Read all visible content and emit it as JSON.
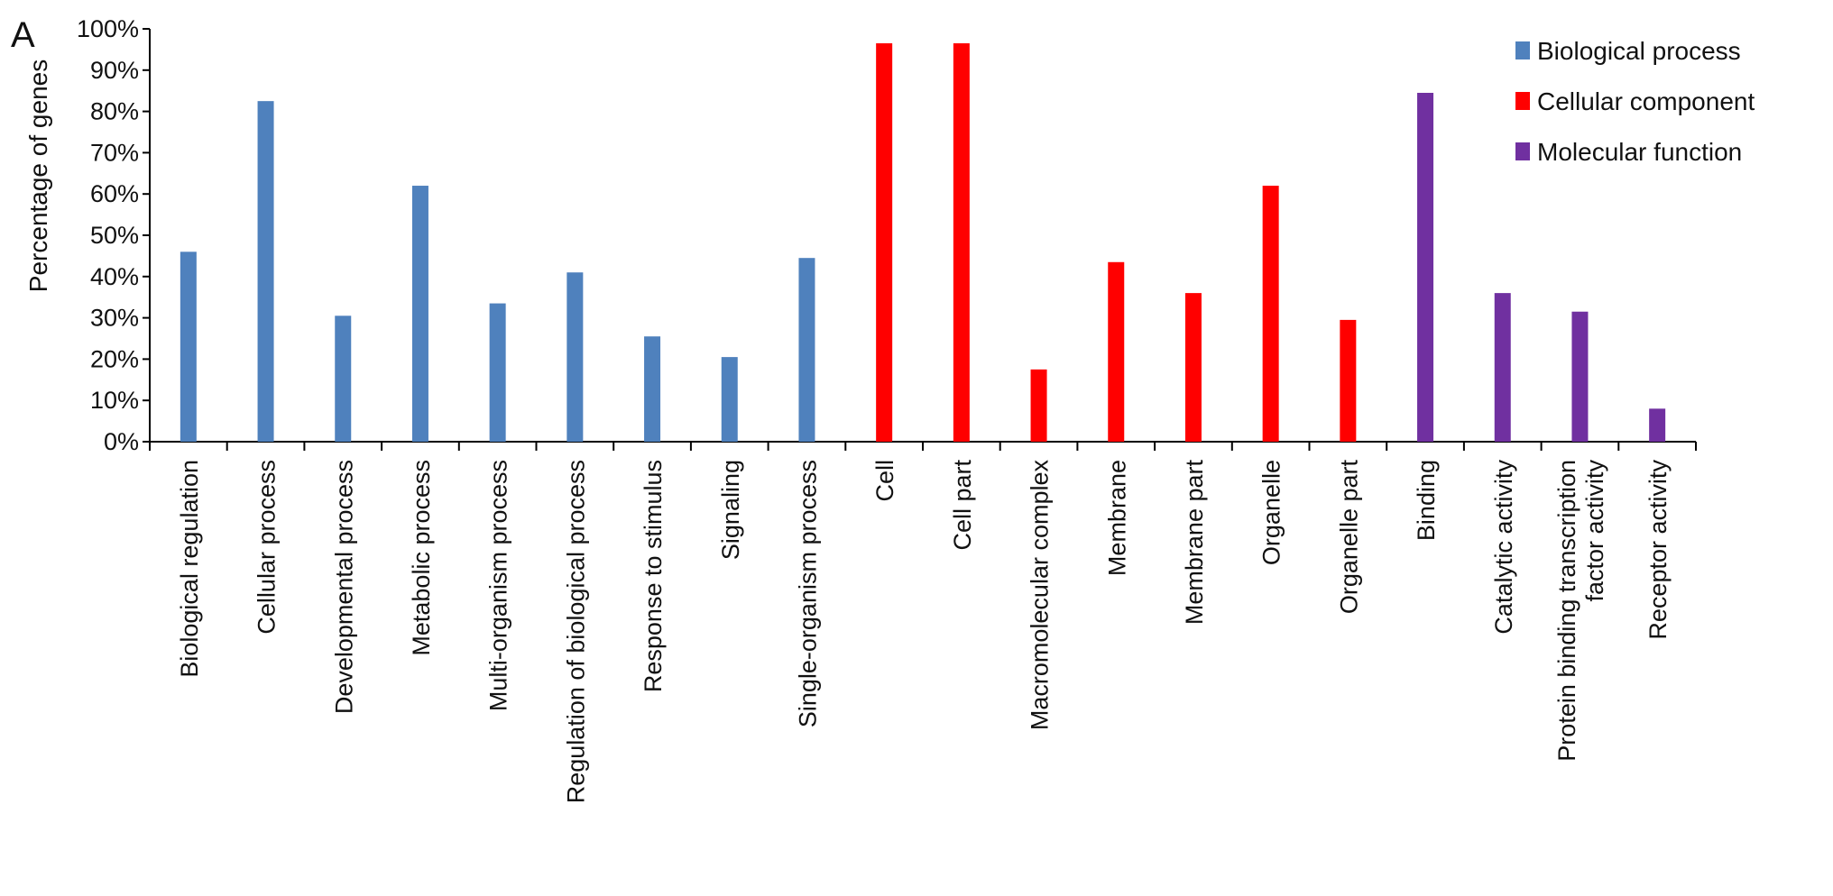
{
  "panel_label": "A",
  "chart_data": {
    "type": "bar",
    "title": "",
    "xlabel": "",
    "ylabel": "Percentage of genes",
    "ylim": [
      0,
      100
    ],
    "y_ticks": [
      "0%",
      "10%",
      "20%",
      "30%",
      "40%",
      "50%",
      "60%",
      "70%",
      "80%",
      "90%",
      "100%"
    ],
    "grid": false,
    "legend_position": "top-right",
    "categories": [
      "Biological regulation",
      "Cellular process",
      "Developmental process",
      "Metabolic process",
      "Multi-organism process",
      "Regulation of biological process",
      "Response to stimulus",
      "Signaling",
      "Single-organism process",
      "Cell",
      "Cell part",
      "Macromolecular complex",
      "Membrane",
      "Membrane part",
      "Organelle",
      "Organelle part",
      "Binding",
      "Catalytic activity",
      "Protein binding transcription factor activity",
      "Receptor activity"
    ],
    "category_lines": [
      [
        "Biological regulation"
      ],
      [
        "Cellular process"
      ],
      [
        "Developmental process"
      ],
      [
        "Metabolic process"
      ],
      [
        "Multi-organism process"
      ],
      [
        "Regulation of biological process"
      ],
      [
        "Response to stimulus"
      ],
      [
        "Signaling"
      ],
      [
        "Single-organism process"
      ],
      [
        "Cell"
      ],
      [
        "Cell part"
      ],
      [
        "Macromolecular complex"
      ],
      [
        "Membrane"
      ],
      [
        "Membrane part"
      ],
      [
        "Organelle"
      ],
      [
        "Organelle part"
      ],
      [
        "Binding"
      ],
      [
        "Catalytic activity"
      ],
      [
        "Protein binding transcription",
        "factor activity"
      ],
      [
        "Receptor activity"
      ]
    ],
    "values": [
      46,
      82.5,
      30.5,
      62,
      33.5,
      41,
      25.5,
      20.5,
      44.5,
      96.5,
      96.5,
      17.5,
      43.5,
      36,
      62,
      29.5,
      84.5,
      36,
      31.5,
      8
    ],
    "groups": [
      0,
      0,
      0,
      0,
      0,
      0,
      0,
      0,
      0,
      1,
      1,
      1,
      1,
      1,
      1,
      1,
      2,
      2,
      2,
      2
    ],
    "series": [
      {
        "name": "Biological process",
        "color": "#4f81bd"
      },
      {
        "name": "Cellular component",
        "color": "#ff0000"
      },
      {
        "name": "Molecular function",
        "color": "#7030a0"
      }
    ]
  }
}
